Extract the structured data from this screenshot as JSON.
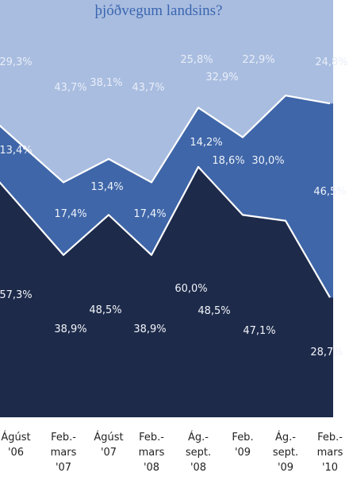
{
  "chart_data": {
    "type": "area",
    "title": "þjóðvegum landsins?",
    "categories": [
      [
        "Ágúst",
        "'06"
      ],
      [
        "Feb.-",
        "mars",
        "'07"
      ],
      [
        "Ágúst",
        "'07"
      ],
      [
        "Feb.-",
        "mars",
        "'08"
      ],
      [
        "Ág.-",
        "sept.",
        "'08"
      ],
      [
        "Feb.",
        "'09"
      ],
      [
        "Ág.-",
        "sept.",
        "'09"
      ],
      [
        "Feb.-",
        "mars",
        "'10"
      ]
    ],
    "series": [
      {
        "values": [
          57.3,
          38.9,
          48.5,
          38.9,
          60.0,
          48.5,
          47.1,
          28.7
        ],
        "labels": [
          "57,3%",
          "38,9%",
          "48,5%",
          "38,9%",
          "60,0%",
          "48,5%",
          "47,1%",
          "28,7%"
        ]
      },
      {
        "values": [
          13.4,
          17.4,
          13.4,
          17.4,
          14.2,
          18.6,
          30.0,
          46.5
        ],
        "labels": [
          "13,4%",
          "17,4%",
          "13,4%",
          "17,4%",
          "14,2%",
          "18,6%",
          "30,0%",
          "46,5%"
        ]
      },
      {
        "values": [
          29.3,
          43.7,
          38.1,
          43.7,
          25.8,
          32.9,
          22.9,
          24.8
        ],
        "labels": [
          "29,3%",
          "43,7%",
          "38,1%",
          "43,7%",
          "25,8%",
          "32,9%",
          "22,9%",
          "24,8%"
        ]
      }
    ],
    "ylim": [
      0,
      100
    ],
    "stacked": true,
    "grid": false,
    "colors": {
      "bottom": "#1d2a4a",
      "middle": "#3f66a8",
      "top": "#a9bde0",
      "title": "#3b66b0"
    }
  }
}
